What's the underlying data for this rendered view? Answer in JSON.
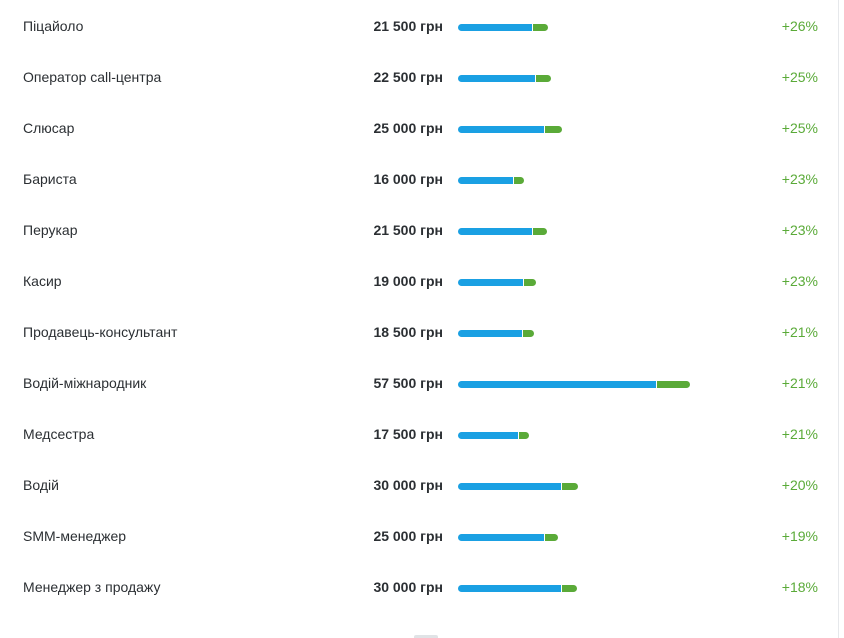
{
  "currency": "грн",
  "colors": {
    "base_bar": "#1aa0e3",
    "growth_bar": "#5aaa38",
    "change_text": "#5aaa38",
    "text": "#2b2f33"
  },
  "scale_max_salary": 57500,
  "rows": [
    {
      "label": "Піцайоло",
      "salary": "21 500 грн",
      "salary_value": 21500,
      "change": "+26%",
      "change_value": 26
    },
    {
      "label": "Оператор call-центра",
      "salary": "22 500 грн",
      "salary_value": 22500,
      "change": "+25%",
      "change_value": 25
    },
    {
      "label": "Слюсар",
      "salary": "25 000 грн",
      "salary_value": 25000,
      "change": "+25%",
      "change_value": 25
    },
    {
      "label": "Бариста",
      "salary": "16 000 грн",
      "salary_value": 16000,
      "change": "+23%",
      "change_value": 23
    },
    {
      "label": "Перукар",
      "salary": "21 500 грн",
      "salary_value": 21500,
      "change": "+23%",
      "change_value": 23
    },
    {
      "label": "Касир",
      "salary": "19 000 грн",
      "salary_value": 19000,
      "change": "+23%",
      "change_value": 23
    },
    {
      "label": "Продавець-консультант",
      "salary": "18 500 грн",
      "salary_value": 18500,
      "change": "+21%",
      "change_value": 21
    },
    {
      "label": "Водій-міжнародник",
      "salary": "57 500 грн",
      "salary_value": 57500,
      "change": "+21%",
      "change_value": 21
    },
    {
      "label": "Медсестра",
      "salary": "17 500 грн",
      "salary_value": 17500,
      "change": "+21%",
      "change_value": 21
    },
    {
      "label": "Водій",
      "salary": "30 000 грн",
      "salary_value": 30000,
      "change": "+20%",
      "change_value": 20
    },
    {
      "label": "SMM-менеджер",
      "salary": "25 000 грн",
      "salary_value": 25000,
      "change": "+19%",
      "change_value": 19
    },
    {
      "label": "Менеджер з продажу",
      "salary": "30 000 грн",
      "salary_value": 30000,
      "change": "+18%",
      "change_value": 18
    }
  ]
}
